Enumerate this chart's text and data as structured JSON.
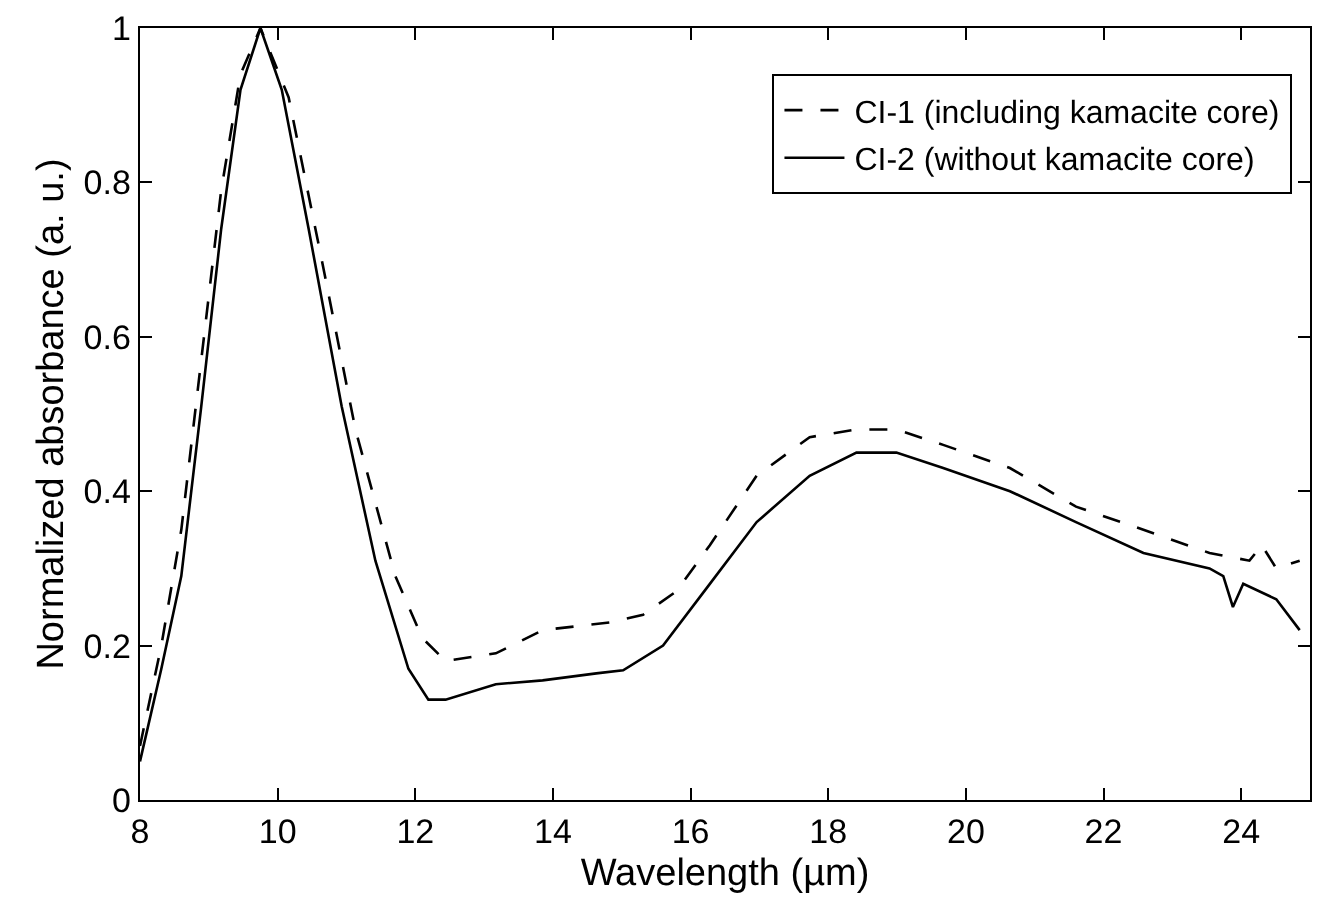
{
  "chart_data": {
    "type": "line",
    "xlabel": "Wavelength (µm)",
    "ylabel": "Normalized absorbance (a. u.)",
    "xlim": [
      8,
      25
    ],
    "xticks": [
      8,
      10,
      12,
      14,
      16,
      18,
      20,
      22,
      24
    ],
    "ylim": [
      0,
      1
    ],
    "yticks": [
      0,
      0.2,
      0.4,
      0.6,
      0.8,
      1
    ],
    "legend": "top right",
    "marker": "none",
    "series": [
      {
        "name": "CI-1 (including kamacite core)",
        "color": "#000000",
        "line_style": "dashed",
        "x": [
          8,
          8.31,
          8.6,
          8.89,
          9.18,
          9.46,
          9.75,
          10.16,
          10.64,
          11.13,
          11.71,
          12.1,
          12.44,
          13.17,
          13.85,
          14.82,
          15.31,
          15.79,
          16.28,
          16.96,
          17.73,
          18.41,
          18.99,
          19.67,
          20.64,
          21.6,
          22.58,
          23.54,
          24.12,
          24.3,
          24.51,
          24.85
        ],
        "values": [
          0.07,
          0.2,
          0.35,
          0.57,
          0.79,
          0.94,
          1.0,
          0.91,
          0.7,
          0.48,
          0.29,
          0.21,
          0.18,
          0.19,
          0.22,
          0.23,
          0.24,
          0.27,
          0.33,
          0.42,
          0.47,
          0.48,
          0.48,
          0.46,
          0.43,
          0.38,
          0.35,
          0.32,
          0.31,
          0.33,
          0.3,
          0.31
        ]
      },
      {
        "name": "CI-2 (without kamacite core)",
        "color": "#000000",
        "line_style": "solid",
        "x": [
          8,
          8.31,
          8.6,
          8.89,
          9.18,
          9.46,
          9.75,
          10.06,
          10.45,
          10.93,
          11.42,
          11.9,
          12.19,
          12.44,
          13.17,
          13.85,
          14.63,
          15.02,
          15.6,
          16.28,
          16.96,
          17.73,
          18.41,
          18.99,
          19.67,
          20.64,
          21.6,
          22.58,
          23.54,
          23.74,
          23.88,
          24.03,
          24.51,
          24.85
        ],
        "values": [
          0.05,
          0.17,
          0.29,
          0.51,
          0.74,
          0.92,
          1.0,
          0.92,
          0.74,
          0.51,
          0.31,
          0.17,
          0.13,
          0.13,
          0.15,
          0.155,
          0.164,
          0.168,
          0.2,
          0.28,
          0.36,
          0.42,
          0.45,
          0.45,
          0.43,
          0.4,
          0.36,
          0.32,
          0.3,
          0.29,
          0.25,
          0.28,
          0.26,
          0.22
        ]
      }
    ]
  }
}
